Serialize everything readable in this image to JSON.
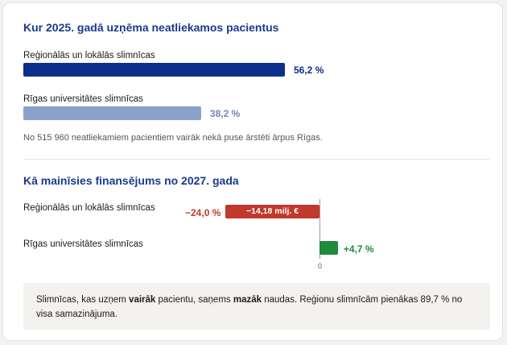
{
  "section1": {
    "title": "Kur 2025. gadā uzņēma neatliekamos pacientus",
    "rows": [
      {
        "label": "Reģionālās un lokālās slimnīcas",
        "value": 56.2,
        "value_label": "56,2 %",
        "color": "#0b2f8a",
        "value_color": "#0b2f8a"
      },
      {
        "label": "Rīgas universitātes slimnīcas",
        "value": 38.2,
        "value_label": "38,2 %",
        "color": "#8aa1cc",
        "value_color": "#6f86bb"
      }
    ],
    "note": "No 515 960 neatliekamiem pacientiem vairāk nekā puse ārstēti ārpus Rīgas."
  },
  "section2": {
    "title": "Kā mainīsies finansējums no 2027. gada",
    "rows": [
      {
        "label": "Reģionālās un lokālās slimnīcas",
        "value": -24.0,
        "value_label": "−24,0 %",
        "inbar_label": "−14,18 milj. €",
        "color": "#c0392b",
        "value_color": "#c0392b"
      },
      {
        "label": "Rīgas universitātes slimnīcas",
        "value": 4.7,
        "value_label": "+4,7 %",
        "inbar_label": "",
        "color": "#1f8a3c",
        "value_color": "#1f8a3c"
      }
    ],
    "zero_label": "0"
  },
  "footer": {
    "part1": "Slimnīcas, kas uzņem ",
    "bold1": "vairāk",
    "part2": " pacientu, saņems ",
    "bold2": "mazāk",
    "part3": " naudas. Reģionu slimnīcām pienākas 89,7 % no visa samazinājuma."
  },
  "chart_data": [
    {
      "type": "bar",
      "title": "Kur 2025. gadā uzņēma neatliekamos pacientus",
      "categories": [
        "Reģionālās un lokālās slimnīcas",
        "Rīgas universitātes slimnīcas"
      ],
      "values": [
        56.2,
        38.2
      ],
      "unit": "%",
      "xlim": [
        0,
        56.2
      ]
    },
    {
      "type": "bar",
      "title": "Kā mainīsies finansējums no 2027. gada",
      "categories": [
        "Reģionālās un lokālās slimnīcas",
        "Rīgas universitātes slimnīcas"
      ],
      "values": [
        -24.0,
        4.7
      ],
      "unit": "%",
      "annotations": [
        "−14,18 milj. €"
      ]
    }
  ]
}
